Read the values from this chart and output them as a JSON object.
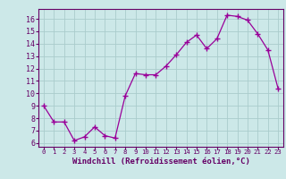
{
  "x": [
    0,
    1,
    2,
    3,
    4,
    5,
    6,
    7,
    8,
    9,
    10,
    11,
    12,
    13,
    14,
    15,
    16,
    17,
    18,
    19,
    20,
    21,
    22,
    23
  ],
  "y": [
    9.0,
    7.7,
    7.7,
    6.2,
    6.5,
    7.3,
    6.6,
    6.4,
    9.8,
    11.6,
    11.5,
    11.5,
    12.2,
    13.1,
    14.1,
    14.7,
    13.6,
    14.4,
    16.3,
    16.2,
    15.9,
    14.8,
    13.5,
    10.4
  ],
  "line_color": "#990099",
  "marker": "+",
  "markersize": 4,
  "linewidth": 0.9,
  "bg_color": "#cce8e8",
  "grid_color": "#aacccc",
  "xlabel": "Windchill (Refroidissement éolien,°C)",
  "xlabel_color": "#660066",
  "ylabel_ticks": [
    6,
    7,
    8,
    9,
    10,
    11,
    12,
    13,
    14,
    15,
    16
  ],
  "ylim": [
    5.7,
    16.8
  ],
  "xlim": [
    -0.5,
    23.5
  ],
  "xtick_labels": [
    "0",
    "1",
    "2",
    "3",
    "4",
    "5",
    "6",
    "7",
    "8",
    "9",
    "10",
    "11",
    "12",
    "13",
    "14",
    "15",
    "16",
    "17",
    "18",
    "19",
    "20",
    "21",
    "22",
    "23"
  ],
  "tick_color": "#660066",
  "spine_color": "#660066"
}
